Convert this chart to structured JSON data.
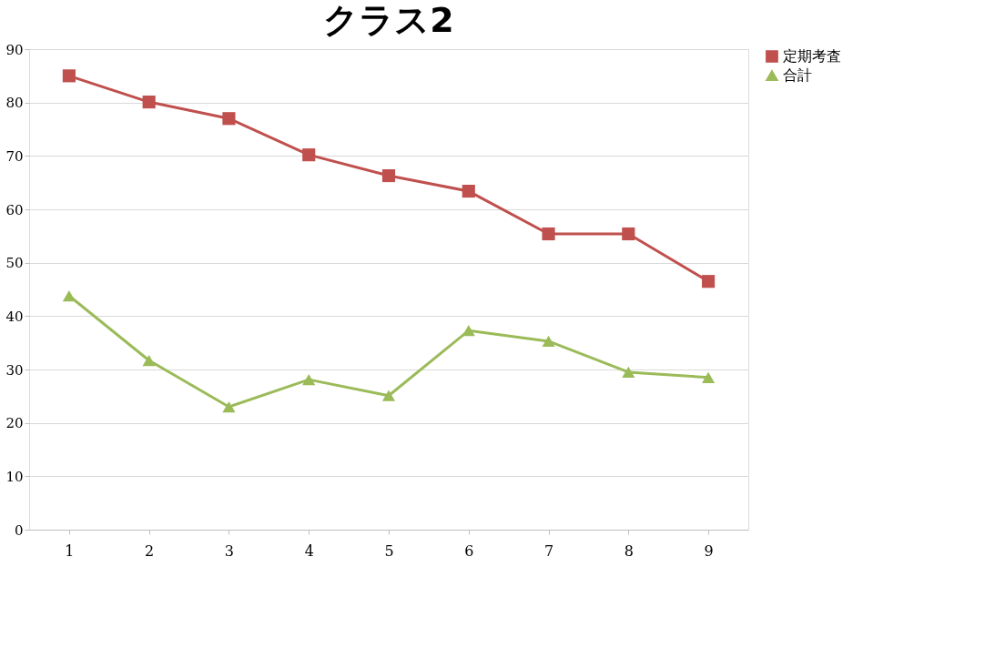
{
  "chart_data": {
    "type": "line",
    "title": "クラス2",
    "categories": [
      "1",
      "2",
      "3",
      "4",
      "5",
      "6",
      "7",
      "8",
      "9"
    ],
    "series": [
      {
        "name": "定期考査",
        "color": "#c0504d",
        "marker": "square",
        "values": [
          85.0,
          80.1,
          77.0,
          70.2,
          66.3,
          63.4,
          55.4,
          55.4,
          46.5
        ]
      },
      {
        "name": "合計",
        "color": "#9bbb59",
        "marker": "triangle",
        "values": [
          43.8,
          31.7,
          23.0,
          28.1,
          25.1,
          37.3,
          35.3,
          29.5,
          28.5
        ]
      }
    ],
    "ylim": [
      0,
      90
    ],
    "yticks": [
      0,
      10,
      20,
      30,
      40,
      50,
      60,
      70,
      80,
      90
    ],
    "grid": "y",
    "legend": "right"
  }
}
